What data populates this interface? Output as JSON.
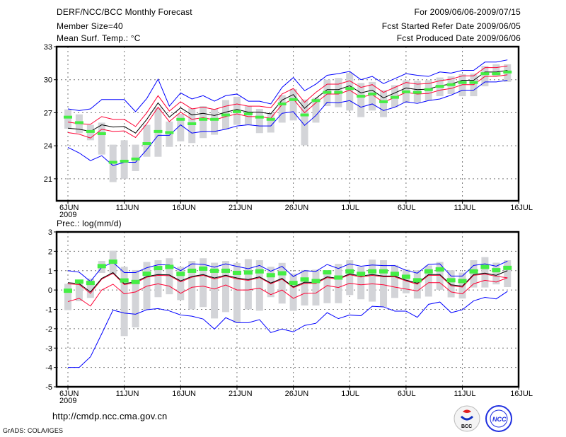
{
  "header": {
    "title": "DERF/NCC/BCC Monthly Forecast",
    "member_size": "Member Size=40",
    "variable1": "Mean Surf. Temp.: °C",
    "period": "For 2009/06/06-2009/07/15",
    "start_date": "Fcst Started Refer Date 2009/06/05",
    "produced_date": "Fcst Produced Date 2009/06/06"
  },
  "footer": {
    "url": "http://cmdp.ncc.cma.gov.cn",
    "credit": "GrADS: COLA/IGES",
    "logos": [
      "BCC",
      "NCC"
    ]
  },
  "colors": {
    "outer": "#0000ff",
    "inner": "#ff0033",
    "median": "#000000",
    "mean": "#44ee44",
    "box": "#d3d4d8",
    "grid": "#777777"
  },
  "chart_data": [
    {
      "type": "line",
      "title": "Mean Surf. Temp.: °C",
      "x_start": "2009-06-06",
      "n_days": 40,
      "xticks": [
        "6JUN",
        "11JUN",
        "16JUN",
        "21JUN",
        "26JUN",
        "1JUL",
        "6JUL",
        "11JUL",
        "16JUL"
      ],
      "xtick_year": "2009",
      "yticks": [
        "21",
        "24",
        "27",
        "30",
        "33"
      ],
      "ylim": [
        19,
        33
      ],
      "grid": true,
      "series": {
        "blue_upper": [
          27.35,
          27.2,
          27.35,
          28.2,
          28.2,
          28.2,
          27.1,
          28.3,
          30.05,
          27.6,
          28.8,
          28.25,
          28.55,
          28.05,
          28.55,
          28.7,
          28.05,
          28.05,
          27.8,
          29.3,
          30.2,
          29.0,
          29.6,
          30.4,
          30.55,
          30.75,
          30.0,
          30.3,
          29.65,
          30.1,
          30.55,
          30.4,
          30.3,
          30.7,
          30.6,
          30.85,
          30.85,
          31.6,
          31.6,
          31.8
        ],
        "red_upper": [
          26.15,
          26.0,
          25.95,
          26.65,
          26.4,
          26.4,
          25.75,
          27.0,
          28.55,
          27.15,
          28.0,
          27.35,
          27.5,
          27.3,
          27.6,
          27.8,
          27.6,
          27.6,
          27.45,
          28.7,
          29.2,
          27.95,
          28.85,
          29.6,
          29.6,
          29.9,
          29.3,
          29.55,
          28.85,
          29.3,
          29.75,
          29.6,
          29.65,
          29.9,
          30.05,
          30.35,
          30.35,
          31.1,
          31.1,
          31.25
        ],
        "median": [
          25.6,
          25.5,
          25.3,
          25.9,
          25.7,
          25.75,
          25.15,
          26.4,
          27.9,
          26.6,
          27.45,
          26.8,
          26.95,
          26.75,
          27.05,
          27.3,
          27.05,
          27.05,
          26.9,
          28.15,
          28.65,
          27.4,
          28.3,
          29.1,
          29.1,
          29.45,
          28.8,
          29.05,
          28.35,
          28.8,
          29.25,
          29.1,
          29.15,
          29.45,
          29.6,
          29.95,
          29.95,
          30.7,
          30.7,
          30.85
        ],
        "red_lower": [
          25.2,
          25.05,
          24.7,
          25.5,
          25.3,
          25.35,
          24.75,
          26.0,
          27.5,
          26.2,
          27.05,
          26.4,
          26.55,
          26.35,
          26.65,
          26.9,
          26.65,
          26.65,
          26.5,
          27.75,
          28.25,
          27.0,
          27.9,
          28.7,
          28.7,
          29.05,
          28.4,
          28.65,
          27.95,
          28.4,
          28.85,
          28.7,
          28.75,
          29.05,
          29.2,
          29.55,
          29.55,
          30.3,
          30.3,
          30.45
        ],
        "blue_lower": [
          23.85,
          23.35,
          22.65,
          23.1,
          22.2,
          22.5,
          22.5,
          23.65,
          24.95,
          24.95,
          25.9,
          25.15,
          25.3,
          25.3,
          25.5,
          25.8,
          25.9,
          25.8,
          25.8,
          26.95,
          27.1,
          25.85,
          26.75,
          27.95,
          27.9,
          28.1,
          27.5,
          27.8,
          27.2,
          27.5,
          28.0,
          27.85,
          28.1,
          28.25,
          28.6,
          29.05,
          29.05,
          29.8,
          29.8,
          29.95
        ],
        "mean": [
          26.6,
          26.1,
          25.3,
          25.1,
          22.5,
          22.6,
          22.8,
          24.2,
          25.3,
          25.2,
          26.4,
          26.0,
          26.4,
          26.4,
          26.8,
          27.1,
          26.9,
          26.6,
          26.4,
          27.8,
          28.2,
          26.8,
          28.1,
          28.85,
          28.85,
          29.2,
          28.5,
          28.7,
          28.0,
          28.4,
          28.9,
          28.85,
          29.1,
          29.4,
          29.55,
          29.75,
          29.75,
          30.55,
          30.55,
          30.7
        ],
        "box_max": [
          27.3,
          26.85,
          25.9,
          26.1,
          24.1,
          24.5,
          24.1,
          25.9,
          27.45,
          26.2,
          26.9,
          27.4,
          27.6,
          27.35,
          28.15,
          28.45,
          27.6,
          27.35,
          26.95,
          28.6,
          29.15,
          28.2,
          28.35,
          30.0,
          30.15,
          30.6,
          29.7,
          29.8,
          29.05,
          29.5,
          29.95,
          29.9,
          29.95,
          30.2,
          30.3,
          30.5,
          30.55,
          31.25,
          31.4,
          31.4
        ],
        "box_min": [
          25.55,
          25.15,
          24.5,
          23.2,
          20.7,
          21.0,
          21.7,
          23.0,
          23.0,
          23.9,
          24.4,
          24.25,
          24.7,
          25.0,
          25.5,
          25.9,
          25.9,
          25.15,
          25.2,
          26.1,
          26.3,
          24.05,
          26.1,
          27.6,
          27.5,
          27.2,
          26.6,
          27.2,
          26.6,
          27.5,
          27.9,
          27.95,
          28.1,
          28.5,
          28.7,
          28.5,
          28.5,
          29.4,
          30.3,
          29.8
        ]
      }
    },
    {
      "type": "line",
      "title": "Prec.: log(mm/d)",
      "x_start": "2009-06-06",
      "n_days": 40,
      "xticks": [
        "6JUN",
        "11JUN",
        "16JUN",
        "21JUN",
        "26JUN",
        "1JUL",
        "6JUL",
        "11JUL",
        "16JUL"
      ],
      "xtick_year": "2009",
      "yticks": [
        "-5",
        "-4",
        "-3",
        "-2",
        "-1",
        "0",
        "1",
        "2",
        "3"
      ],
      "ylim": [
        -5,
        3
      ],
      "grid": true,
      "series": {
        "blue_upper": [
          1.0,
          0.92,
          0.44,
          1.17,
          1.43,
          0.9,
          0.9,
          1.15,
          1.3,
          1.3,
          1.0,
          1.35,
          1.33,
          1.18,
          1.35,
          1.22,
          1.1,
          1.27,
          0.97,
          1.22,
          0.7,
          1.0,
          0.96,
          1.32,
          1.11,
          1.35,
          1.23,
          1.29,
          1.26,
          1.26,
          1.02,
          0.87,
          1.33,
          1.35,
          0.72,
          0.72,
          1.27,
          1.35,
          1.23,
          1.49
        ],
        "red_upper": [
          0.32,
          0.28,
          -0.17,
          0.56,
          0.86,
          0.28,
          0.37,
          0.66,
          0.76,
          0.74,
          0.42,
          0.66,
          0.76,
          0.57,
          0.72,
          0.57,
          0.5,
          0.64,
          0.32,
          0.56,
          0.12,
          0.35,
          0.34,
          0.64,
          0.56,
          0.79,
          0.67,
          0.76,
          0.68,
          0.68,
          0.47,
          0.3,
          0.76,
          0.76,
          0.22,
          0.15,
          0.76,
          0.82,
          0.71,
          0.63
        ],
        "median": [
          0.38,
          0.33,
          -0.1,
          0.6,
          0.9,
          0.33,
          0.42,
          0.7,
          0.8,
          0.78,
          0.47,
          0.7,
          0.8,
          0.62,
          0.76,
          0.62,
          0.54,
          0.68,
          0.36,
          0.6,
          0.16,
          0.4,
          0.39,
          0.68,
          0.6,
          0.83,
          0.72,
          0.8,
          0.72,
          0.72,
          0.51,
          0.35,
          0.8,
          0.8,
          0.27,
          0.2,
          0.8,
          0.87,
          0.76,
          1.0
        ],
        "red_lower": [
          -0.6,
          -0.43,
          -0.83,
          0.0,
          0.3,
          -0.2,
          -0.1,
          0.2,
          0.32,
          0.2,
          -0.17,
          0.14,
          0.2,
          0.05,
          0.26,
          0.0,
          0.0,
          0.1,
          -0.24,
          0.0,
          -0.43,
          -0.17,
          -0.16,
          0.23,
          0.13,
          0.35,
          0.27,
          0.32,
          0.27,
          0.15,
          0.05,
          -0.05,
          0.38,
          0.38,
          -0.1,
          -0.2,
          0.32,
          0.5,
          0.41,
          0.63
        ],
        "blue_lower": [
          -4.0,
          -4.0,
          -3.45,
          -2.26,
          -1.04,
          -1.19,
          -1.25,
          -1.02,
          -0.96,
          -1.08,
          -1.29,
          -1.35,
          -1.5,
          -2.02,
          -1.43,
          -1.69,
          -1.69,
          -1.53,
          -2.2,
          -2.02,
          -2.16,
          -1.83,
          -1.72,
          -1.17,
          -1.48,
          -1.29,
          -1.33,
          -0.84,
          -0.87,
          -1.09,
          -1.09,
          -1.41,
          -0.74,
          -0.62,
          -1.17,
          -1.02,
          -0.56,
          -0.38,
          -0.46,
          -0.07
        ],
        "mean": [
          0.0,
          0.47,
          0.4,
          1.27,
          1.5,
          0.53,
          0.45,
          0.88,
          1.17,
          1.23,
          0.87,
          1.03,
          1.14,
          1.03,
          1.03,
          0.92,
          0.94,
          1.0,
          0.8,
          0.9,
          0.4,
          0.58,
          0.5,
          0.95,
          0.68,
          1.0,
          0.87,
          1.0,
          1.0,
          0.87,
          0.72,
          0.54,
          1.0,
          1.1,
          0.54,
          0.5,
          1.0,
          1.23,
          1.06,
          1.18
        ],
        "box_max": [
          0.32,
          0.42,
          0.59,
          1.5,
          2.03,
          1.2,
          1.03,
          1.45,
          1.54,
          1.64,
          1.2,
          1.5,
          1.64,
          1.41,
          1.5,
          1.39,
          1.6,
          1.54,
          1.2,
          1.4,
          0.85,
          1.03,
          1.05,
          0.87,
          1.35,
          1.54,
          1.2,
          1.57,
          1.54,
          1.29,
          1.07,
          1.02,
          1.27,
          1.45,
          1.02,
          0.9,
          1.54,
          1.7,
          1.41,
          1.54
        ],
        "box_min": [
          -1.04,
          -0.58,
          -0.41,
          0.88,
          0.8,
          -2.38,
          -1.93,
          -1.02,
          -0.37,
          -0.22,
          -0.52,
          -1.0,
          -0.88,
          -1.47,
          -1.14,
          -1.69,
          -1.0,
          -1.07,
          -0.37,
          -0.7,
          -1.07,
          -0.8,
          -0.8,
          -0.68,
          -0.68,
          -0.26,
          -0.48,
          -0.6,
          -0.87,
          -0.41,
          -0.17,
          -0.44,
          -0.34,
          0.01,
          -0.38,
          -0.44,
          0.13,
          0.13,
          0.29,
          0.15
        ]
      }
    }
  ]
}
